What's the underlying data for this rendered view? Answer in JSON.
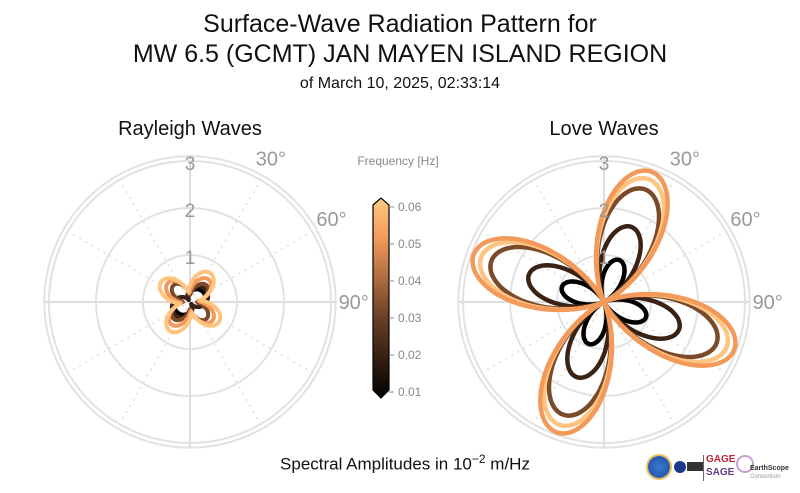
{
  "title": {
    "line1": "Surface-Wave Radiation Pattern for",
    "line2": "MW 6.5 (GCMT) JAN MAYEN ISLAND REGION",
    "line3": "of March 10, 2025, 02:33:14"
  },
  "xlabel": {
    "prefix": "Spectral Amplitudes in 10",
    "exp": "−2",
    "suffix": " m/Hz"
  },
  "logos": {
    "gage": "GAGE",
    "sage": "SAGE",
    "earthscope": "EarthScope",
    "consortium": "Consortium"
  },
  "chart_data": [
    {
      "type": "polar-line",
      "title": "Rayleigh Waves",
      "radial_ticks": [
        "1",
        "2",
        "3"
      ],
      "angle_ticks": [
        "30°",
        "60°",
        "90°"
      ],
      "rlim": [
        0,
        3.1
      ],
      "grid": true,
      "series": [
        {
          "frequency": 0.01,
          "color": "#000000",
          "amplitude": 0.35,
          "lobe_azimuth": 60,
          "lobes": 2
        },
        {
          "frequency": 0.02,
          "color": "#3a2314",
          "amplitude": 0.42,
          "lobe_azimuth": 55,
          "lobes": 2
        },
        {
          "frequency": 0.03,
          "color": "#7a4a2a",
          "amplitude": 0.5,
          "lobe_azimuth": 45,
          "lobes": 4
        },
        {
          "frequency": 0.04,
          "color": "#f39a5a",
          "amplitude": 0.62,
          "lobe_azimuth": 40,
          "lobes": 4
        },
        {
          "frequency": 0.05,
          "color": "#ffc580",
          "amplitude": 0.75,
          "lobe_azimuth": 35,
          "lobes": 4
        }
      ]
    },
    {
      "type": "polar-line",
      "title": "Love Waves",
      "radial_ticks": [
        "1",
        "2",
        "3"
      ],
      "angle_ticks": [
        "30°",
        "60°",
        "90°"
      ],
      "rlim": [
        0,
        3.1
      ],
      "grid": true,
      "series": [
        {
          "frequency": 0.01,
          "color": "#000000",
          "amplitude": 0.95,
          "lobe_azimuth": 20,
          "lobes": 4
        },
        {
          "frequency": 0.02,
          "color": "#3a2314",
          "amplitude": 1.7,
          "lobe_azimuth": 20,
          "lobes": 4
        },
        {
          "frequency": 0.03,
          "color": "#7a4a2a",
          "amplitude": 2.55,
          "lobe_azimuth": 20,
          "lobes": 4
        },
        {
          "frequency": 0.04,
          "color": "#ffc580",
          "amplitude": 2.78,
          "lobe_azimuth": 20,
          "lobes": 4
        },
        {
          "frequency": 0.05,
          "color": "#f39a5a",
          "amplitude": 2.95,
          "lobe_azimuth": 20,
          "lobes": 4
        }
      ]
    }
  ],
  "colorbar": {
    "label": "Frequency [Hz]",
    "ticks": [
      "0.01",
      "0.02",
      "0.03",
      "0.04",
      "0.05",
      "0.06"
    ],
    "range": [
      0.01,
      0.06
    ],
    "colors": [
      "#000000",
      "#6a3f25",
      "#f39a5a",
      "#ffc880"
    ]
  }
}
